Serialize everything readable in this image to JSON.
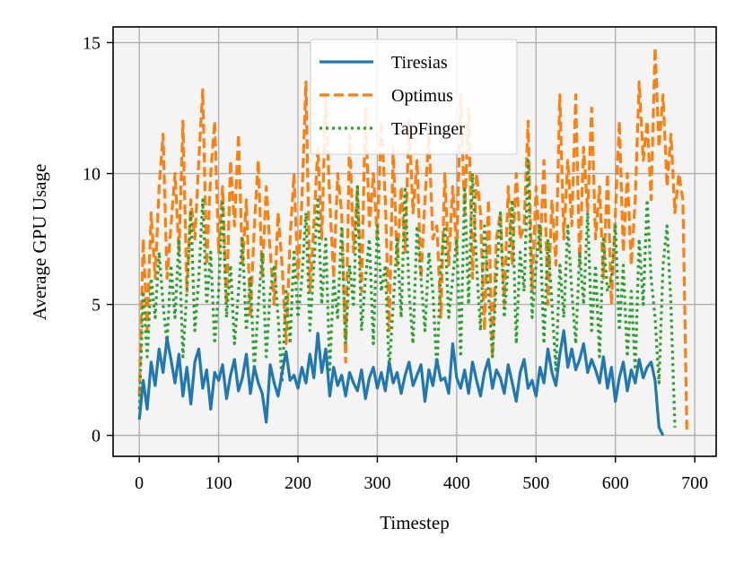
{
  "chart_data": {
    "type": "line",
    "title": "",
    "xlabel": "Timestep",
    "ylabel": "Average GPU Usage",
    "xlim": [
      -33,
      727
    ],
    "ylim": [
      -0.8,
      15.6
    ],
    "xticks": [
      0,
      100,
      200,
      300,
      400,
      500,
      600,
      700
    ],
    "yticks": [
      0,
      5,
      10,
      15
    ],
    "grid": true,
    "legend_position": "top-center",
    "colors": {
      "background": "#f4f4f4",
      "grid": "#b0b0b0"
    },
    "series": [
      {
        "name": "Tiresias",
        "color": "#1f77b4",
        "style": "solid",
        "x": [
          0,
          5,
          10,
          15,
          20,
          25,
          30,
          35,
          40,
          45,
          50,
          55,
          60,
          65,
          70,
          75,
          80,
          85,
          90,
          95,
          100,
          105,
          110,
          115,
          120,
          125,
          130,
          135,
          140,
          145,
          150,
          155,
          160,
          165,
          170,
          175,
          180,
          185,
          190,
          195,
          200,
          205,
          210,
          215,
          220,
          225,
          230,
          235,
          240,
          245,
          250,
          255,
          260,
          265,
          270,
          275,
          280,
          285,
          290,
          295,
          300,
          305,
          310,
          315,
          320,
          325,
          330,
          335,
          340,
          345,
          350,
          355,
          360,
          365,
          370,
          375,
          380,
          385,
          390,
          395,
          400,
          405,
          410,
          415,
          420,
          425,
          430,
          435,
          440,
          445,
          450,
          455,
          460,
          465,
          470,
          475,
          480,
          485,
          490,
          495,
          500,
          505,
          510,
          515,
          520,
          525,
          530,
          535,
          540,
          545,
          550,
          555,
          560,
          565,
          570,
          575,
          580,
          585,
          590,
          595,
          600,
          605,
          610,
          615,
          620,
          625,
          630,
          635,
          640,
          645,
          650,
          655,
          660
        ],
        "values": [
          0.6,
          2.1,
          1.0,
          2.8,
          1.9,
          3.3,
          2.4,
          3.7,
          2.9,
          2.0,
          3.1,
          1.5,
          2.6,
          1.2,
          2.8,
          3.3,
          1.8,
          2.5,
          1.0,
          2.4,
          2.1,
          2.7,
          1.4,
          2.3,
          2.9,
          1.7,
          2.2,
          3.1,
          1.6,
          2.6,
          2.0,
          1.6,
          0.5,
          2.7,
          2.0,
          1.5,
          2.4,
          3.2,
          2.1,
          2.3,
          1.8,
          2.6,
          2.0,
          3.1,
          2.2,
          3.9,
          2.4,
          3.3,
          1.5,
          2.6,
          1.9,
          2.3,
          1.5,
          2.4,
          2.0,
          1.7,
          2.5,
          1.4,
          2.2,
          2.6,
          1.8,
          2.4,
          1.7,
          2.8,
          2.0,
          2.4,
          1.6,
          2.3,
          2.8,
          1.9,
          2.3,
          2.7,
          1.3,
          2.5,
          1.9,
          2.9,
          2.1,
          2.2,
          1.6,
          3.5,
          2.2,
          1.8,
          2.5,
          1.6,
          2.8,
          2.1,
          1.5,
          2.4,
          2.9,
          1.8,
          2.5,
          2.2,
          1.6,
          2.7,
          2.0,
          1.3,
          2.4,
          2.9,
          1.8,
          2.1,
          1.5,
          2.6,
          2.0,
          3.3,
          2.4,
          1.9,
          3.1,
          4.0,
          2.6,
          3.3,
          2.5,
          2.9,
          3.5,
          2.4,
          2.9,
          2.5,
          2.0,
          3.0,
          1.8,
          2.6,
          1.3,
          2.2,
          2.8,
          1.7,
          2.5,
          2.0,
          2.9,
          2.2,
          2.6,
          2.8,
          2.1,
          0.3,
          0.0
        ]
      },
      {
        "name": "Optimus",
        "color": "#ff7f0e",
        "style": "dashed",
        "x": [
          0,
          5,
          10,
          15,
          20,
          25,
          30,
          35,
          40,
          45,
          50,
          55,
          60,
          65,
          70,
          75,
          80,
          85,
          90,
          95,
          100,
          105,
          110,
          115,
          120,
          125,
          130,
          135,
          140,
          145,
          150,
          155,
          160,
          165,
          170,
          175,
          180,
          185,
          190,
          195,
          200,
          205,
          210,
          215,
          220,
          225,
          230,
          235,
          240,
          245,
          250,
          255,
          260,
          265,
          270,
          275,
          280,
          285,
          290,
          295,
          300,
          305,
          310,
          315,
          320,
          325,
          330,
          335,
          340,
          345,
          350,
          355,
          360,
          365,
          370,
          375,
          380,
          385,
          390,
          395,
          400,
          405,
          410,
          415,
          420,
          425,
          430,
          435,
          440,
          445,
          450,
          455,
          460,
          465,
          470,
          475,
          480,
          485,
          490,
          495,
          500,
          505,
          510,
          515,
          520,
          525,
          530,
          535,
          540,
          545,
          550,
          555,
          560,
          565,
          570,
          575,
          580,
          585,
          590,
          595,
          600,
          605,
          610,
          615,
          620,
          625,
          630,
          635,
          640,
          645,
          650,
          655,
          660,
          665,
          670,
          675,
          680,
          685,
          690
        ],
        "values": [
          1.5,
          7.5,
          4.0,
          8.5,
          6.0,
          9.5,
          11.5,
          6.0,
          8.0,
          10.0,
          7.0,
          12.0,
          5.5,
          9.0,
          7.5,
          10.5,
          13.2,
          6.5,
          10.0,
          12.0,
          7.0,
          9.5,
          5.0,
          10.5,
          8.0,
          11.5,
          6.5,
          9.0,
          4.5,
          8.0,
          10.5,
          6.0,
          9.5,
          7.0,
          5.0,
          8.5,
          6.5,
          3.5,
          7.5,
          10.0,
          6.0,
          9.0,
          13.5,
          5.5,
          8.0,
          11.0,
          7.5,
          13.0,
          9.0,
          6.0,
          10.0,
          8.5,
          2.8,
          11.5,
          7.0,
          9.5,
          5.5,
          12.5,
          8.0,
          10.0,
          7.5,
          12.0,
          9.0,
          4.0,
          11.0,
          6.5,
          9.5,
          7.0,
          12.0,
          8.5,
          10.5,
          6.0,
          9.0,
          11.5,
          7.5,
          8.0,
          4.5,
          10.0,
          6.5,
          9.5,
          7.0,
          13.0,
          8.5,
          12.5,
          6.0,
          10.0,
          8.5,
          4.0,
          9.0,
          3.0,
          7.5,
          8.5,
          5.0,
          9.5,
          6.5,
          10.0,
          7.5,
          8.0,
          12.0,
          5.5,
          9.5,
          7.0,
          10.5,
          5.0,
          9.0,
          6.5,
          13.0,
          7.5,
          10.5,
          8.0,
          13.0,
          6.5,
          11.0,
          8.5,
          12.5,
          7.5,
          9.5,
          6.0,
          10.0,
          5.0,
          8.5,
          12.0,
          7.0,
          10.0,
          6.5,
          9.0,
          13.5,
          10.5,
          12.0,
          9.0,
          14.8,
          11.0,
          13.0,
          9.5,
          11.5,
          8.5,
          10.0,
          9.0,
          0.2
        ]
      },
      {
        "name": "TapFinger",
        "color": "#2ca02c",
        "style": "dotted",
        "x": [
          0,
          5,
          10,
          15,
          20,
          25,
          30,
          35,
          40,
          45,
          50,
          55,
          60,
          65,
          70,
          75,
          80,
          85,
          90,
          95,
          100,
          105,
          110,
          115,
          120,
          125,
          130,
          135,
          140,
          145,
          150,
          155,
          160,
          165,
          170,
          175,
          180,
          185,
          190,
          195,
          200,
          205,
          210,
          215,
          220,
          225,
          230,
          235,
          240,
          245,
          250,
          255,
          260,
          265,
          270,
          275,
          280,
          285,
          290,
          295,
          300,
          305,
          310,
          315,
          320,
          325,
          330,
          335,
          340,
          345,
          350,
          355,
          360,
          365,
          370,
          375,
          380,
          385,
          390,
          395,
          400,
          405,
          410,
          415,
          420,
          425,
          430,
          435,
          440,
          445,
          450,
          455,
          460,
          465,
          470,
          475,
          480,
          485,
          490,
          495,
          500,
          505,
          510,
          515,
          520,
          525,
          530,
          535,
          540,
          545,
          550,
          555,
          560,
          565,
          570,
          575,
          580,
          585,
          590,
          595,
          600,
          605,
          610,
          615,
          620,
          625,
          630,
          635,
          640,
          645,
          650,
          655,
          660,
          665,
          670,
          675
        ],
        "values": [
          1.0,
          5.5,
          3.0,
          6.0,
          4.5,
          7.0,
          5.0,
          3.5,
          6.5,
          4.5,
          7.5,
          3.0,
          5.5,
          8.5,
          4.0,
          6.0,
          9.0,
          5.0,
          7.0,
          3.5,
          5.5,
          9.0,
          4.5,
          6.5,
          3.5,
          5.5,
          7.5,
          4.0,
          6.0,
          2.5,
          5.0,
          7.0,
          3.0,
          5.5,
          6.5,
          4.5,
          2.0,
          5.5,
          3.5,
          7.0,
          4.5,
          6.0,
          8.5,
          4.0,
          6.5,
          9.0,
          5.0,
          7.5,
          2.5,
          6.0,
          4.5,
          8.0,
          3.5,
          6.5,
          5.0,
          9.5,
          4.0,
          6.0,
          7.5,
          3.5,
          8.0,
          5.5,
          6.5,
          2.5,
          5.0,
          7.5,
          4.5,
          9.5,
          5.5,
          3.5,
          8.0,
          6.0,
          4.0,
          7.0,
          5.5,
          2.5,
          6.5,
          8.0,
          4.5,
          6.0,
          7.5,
          3.0,
          9.5,
          5.0,
          10.0,
          6.5,
          4.0,
          8.0,
          5.5,
          3.0,
          6.0,
          8.5,
          4.5,
          6.5,
          9.0,
          3.5,
          7.0,
          5.5,
          10.5,
          4.5,
          6.5,
          8.0,
          3.5,
          7.5,
          5.0,
          2.5,
          6.5,
          4.5,
          8.0,
          5.5,
          3.5,
          7.0,
          5.0,
          8.5,
          4.0,
          6.5,
          3.0,
          7.5,
          5.5,
          6.0,
          8.0,
          4.0,
          6.5,
          3.0,
          5.5,
          2.5,
          7.5,
          5.0,
          9.0,
          6.0,
          4.5,
          2.0,
          6.5,
          8.0,
          5.0,
          0.3
        ]
      }
    ]
  }
}
